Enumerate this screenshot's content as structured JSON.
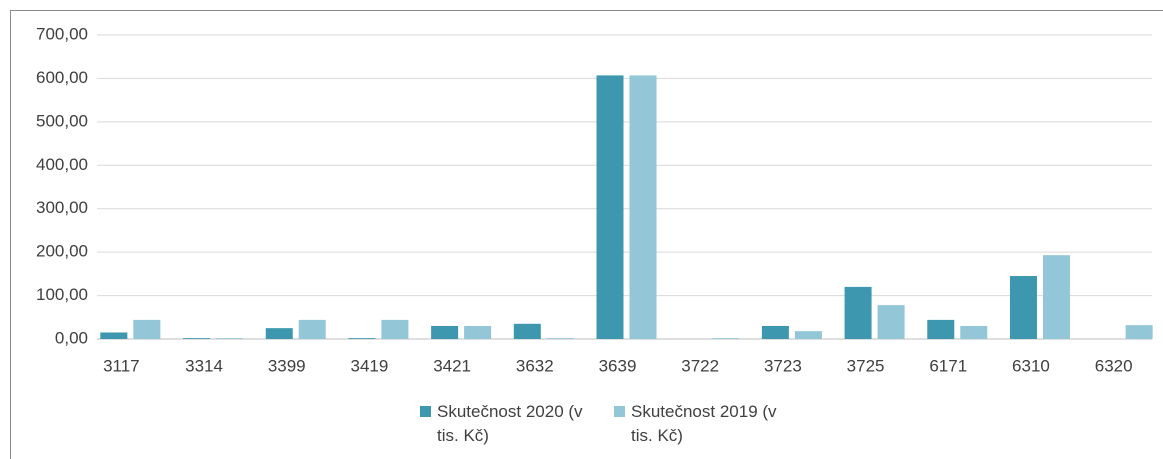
{
  "chart_data": {
    "type": "bar",
    "categories": [
      "3117",
      "3314",
      "3399",
      "3419",
      "3421",
      "3632",
      "3639",
      "3722",
      "3723",
      "3725",
      "6171",
      "6310",
      "6320"
    ],
    "series": [
      {
        "name": "Skutečnost 2020 (v tis. Kč)",
        "color": "#3d97ae",
        "values": [
          15,
          2,
          25,
          2,
          30,
          35,
          607,
          0,
          30,
          120,
          44,
          145,
          0
        ]
      },
      {
        "name": "Skutečnost 2019 (v tis. Kč)",
        "color": "#93c6d6",
        "values": [
          44,
          2,
          44,
          44,
          30,
          2,
          607,
          2,
          18,
          78,
          30,
          193,
          32
        ]
      }
    ],
    "ylim": [
      0,
      700
    ],
    "yticks": [
      {
        "value": 0,
        "label": "0,00"
      },
      {
        "value": 100,
        "label": "100,00"
      },
      {
        "value": 200,
        "label": "200,00"
      },
      {
        "value": 300,
        "label": "300,00"
      },
      {
        "value": 400,
        "label": "400,00"
      },
      {
        "value": 500,
        "label": "500,00"
      },
      {
        "value": 600,
        "label": "600,00"
      },
      {
        "value": 700,
        "label": "700,00"
      }
    ],
    "grid": true,
    "legend": "bottom"
  }
}
